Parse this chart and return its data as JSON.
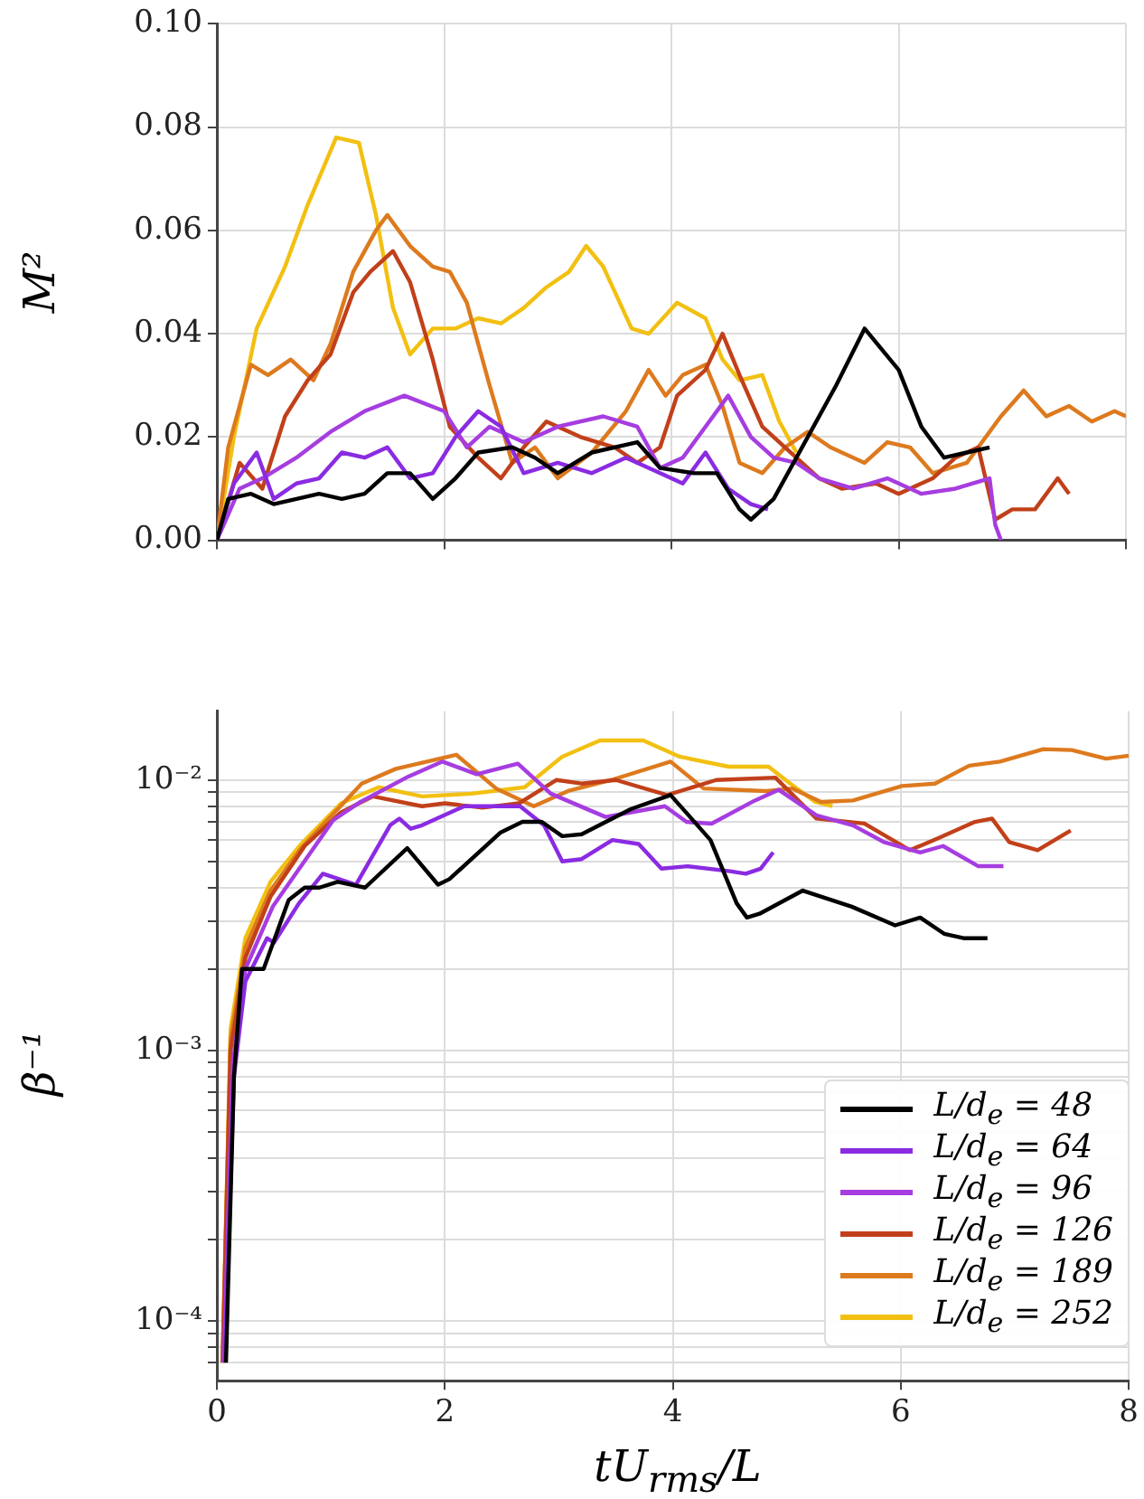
{
  "chart_data": [
    {
      "type": "line",
      "ylabel": "M²",
      "xlim": [
        0,
        8
      ],
      "xticks": [
        0,
        2,
        4,
        6,
        8
      ],
      "ylim": [
        0,
        0.1
      ],
      "yticks": [
        {
          "value": 0,
          "label": "0.00"
        },
        {
          "value": 0.02,
          "label": "0.02"
        },
        {
          "value": 0.04,
          "label": "0.04"
        },
        {
          "value": 0.06,
          "label": "0.06"
        },
        {
          "value": 0.08,
          "label": "0.08"
        },
        {
          "value": 0.1,
          "label": "0.10"
        }
      ],
      "grid": true,
      "tick_labels": "y",
      "line_style": "solid",
      "series": [
        {
          "color": "#000000",
          "x": [
            0,
            0.1,
            0.3,
            0.5,
            0.7,
            0.9,
            1.1,
            1.3,
            1.5,
            1.7,
            1.9,
            2.1,
            2.3,
            2.6,
            2.8,
            3.0,
            3.3,
            3.7,
            3.9,
            4.2,
            4.4,
            4.6,
            4.7,
            4.9,
            5.2,
            5.45,
            5.7,
            6.0,
            6.2,
            6.4,
            6.6,
            6.8
          ],
          "values": [
            0,
            0.008,
            0.009,
            0.007,
            0.008,
            0.009,
            0.008,
            0.009,
            0.013,
            0.013,
            0.008,
            0.012,
            0.017,
            0.018,
            0.016,
            0.013,
            0.017,
            0.019,
            0.014,
            0.013,
            0.013,
            0.006,
            0.004,
            0.008,
            0.02,
            0.03,
            0.041,
            0.033,
            0.022,
            0.016,
            0.017,
            0.018
          ]
        },
        {
          "color": "#8a2be2",
          "x": [
            0,
            0.15,
            0.35,
            0.5,
            0.7,
            0.9,
            1.1,
            1.3,
            1.5,
            1.7,
            1.9,
            2.1,
            2.3,
            2.5,
            2.7,
            3.0,
            3.3,
            3.6,
            3.9,
            4.1,
            4.3,
            4.5,
            4.7,
            4.85
          ],
          "values": [
            0,
            0.011,
            0.017,
            0.008,
            0.011,
            0.012,
            0.017,
            0.016,
            0.018,
            0.012,
            0.013,
            0.02,
            0.025,
            0.022,
            0.013,
            0.015,
            0.013,
            0.016,
            0.013,
            0.011,
            0.017,
            0.01,
            0.007,
            0.006
          ]
        },
        {
          "color": "#a63de0",
          "x": [
            0,
            0.2,
            0.4,
            0.7,
            1.0,
            1.3,
            1.65,
            2.0,
            2.2,
            2.4,
            2.7,
            3.0,
            3.4,
            3.7,
            3.9,
            4.1,
            4.3,
            4.5,
            4.7,
            4.9,
            5.1,
            5.3,
            5.6,
            5.9,
            6.2,
            6.5,
            6.8,
            6.85,
            6.9
          ],
          "values": [
            0,
            0.01,
            0.012,
            0.016,
            0.021,
            0.025,
            0.028,
            0.025,
            0.018,
            0.022,
            0.019,
            0.022,
            0.024,
            0.022,
            0.014,
            0.016,
            0.022,
            0.028,
            0.02,
            0.016,
            0.015,
            0.012,
            0.01,
            0.012,
            0.009,
            0.01,
            0.012,
            0.003,
            0
          ]
        },
        {
          "color": "#c1401a",
          "x": [
            0,
            0.2,
            0.4,
            0.6,
            0.8,
            1.0,
            1.2,
            1.35,
            1.55,
            1.7,
            1.9,
            2.05,
            2.3,
            2.5,
            2.7,
            2.9,
            3.2,
            3.5,
            3.7,
            3.9,
            4.05,
            4.3,
            4.45,
            4.6,
            4.8,
            5.0,
            5.3,
            5.5,
            5.8,
            6.0,
            6.3,
            6.5,
            6.7,
            6.85,
            7.0,
            7.2,
            7.4,
            7.5
          ],
          "values": [
            0,
            0.015,
            0.01,
            0.024,
            0.031,
            0.036,
            0.048,
            0.052,
            0.056,
            0.05,
            0.035,
            0.022,
            0.016,
            0.012,
            0.018,
            0.023,
            0.02,
            0.018,
            0.015,
            0.018,
            0.028,
            0.033,
            0.04,
            0.032,
            0.022,
            0.018,
            0.012,
            0.01,
            0.011,
            0.009,
            0.012,
            0.016,
            0.018,
            0.004,
            0.006,
            0.006,
            0.012,
            0.009
          ]
        },
        {
          "color": "#dd7a1e",
          "x": [
            0,
            0.1,
            0.3,
            0.45,
            0.65,
            0.85,
            1.0,
            1.2,
            1.4,
            1.5,
            1.7,
            1.9,
            2.05,
            2.2,
            2.4,
            2.6,
            2.8,
            3.0,
            3.3,
            3.6,
            3.8,
            3.95,
            4.1,
            4.3,
            4.45,
            4.6,
            4.8,
            5.0,
            5.2,
            5.4,
            5.7,
            5.9,
            6.1,
            6.3,
            6.6,
            6.9,
            7.1,
            7.3,
            7.5,
            7.7,
            7.9,
            8.0
          ],
          "values": [
            0,
            0.018,
            0.034,
            0.032,
            0.035,
            0.031,
            0.038,
            0.052,
            0.06,
            0.063,
            0.057,
            0.053,
            0.052,
            0.046,
            0.03,
            0.015,
            0.018,
            0.012,
            0.017,
            0.025,
            0.033,
            0.028,
            0.032,
            0.034,
            0.026,
            0.015,
            0.013,
            0.018,
            0.021,
            0.018,
            0.015,
            0.019,
            0.018,
            0.013,
            0.015,
            0.024,
            0.029,
            0.024,
            0.026,
            0.023,
            0.025,
            0.024
          ]
        },
        {
          "color": "#f2c012",
          "x": [
            0,
            0.15,
            0.35,
            0.6,
            0.8,
            1.05,
            1.25,
            1.4,
            1.55,
            1.7,
            1.9,
            2.1,
            2.3,
            2.5,
            2.7,
            2.9,
            3.1,
            3.25,
            3.4,
            3.65,
            3.8,
            4.05,
            4.3,
            4.45,
            4.6,
            4.8,
            4.95,
            5.1
          ],
          "values": [
            0,
            0.02,
            0.041,
            0.053,
            0.065,
            0.078,
            0.077,
            0.063,
            0.045,
            0.036,
            0.041,
            0.041,
            0.043,
            0.042,
            0.045,
            0.049,
            0.052,
            0.057,
            0.053,
            0.041,
            0.04,
            0.046,
            0.043,
            0.035,
            0.031,
            0.032,
            0.023,
            0.017
          ]
        }
      ]
    },
    {
      "type": "line",
      "xlabel": "tU$_{rms}$/L",
      "ylabel": "β⁻¹",
      "xlim": [
        0,
        8
      ],
      "xticks": [
        0,
        2,
        4,
        6,
        8
      ],
      "ylim": [
        6e-05,
        0.018
      ],
      "log": "y",
      "yticks": [
        {
          "value": 7e-05,
          "label": null
        },
        {
          "value": 8e-05,
          "label": null
        },
        {
          "value": 9e-05,
          "label": null
        },
        {
          "value": 0.0001,
          "label": "10⁻⁴"
        },
        {
          "value": 0.0002,
          "label": null
        },
        {
          "value": 0.0003,
          "label": null
        },
        {
          "value": 0.0004,
          "label": null
        },
        {
          "value": 0.0005,
          "label": null
        },
        {
          "value": 0.0006,
          "label": null
        },
        {
          "value": 0.0007,
          "label": null
        },
        {
          "value": 0.0008,
          "label": null
        },
        {
          "value": 0.0009,
          "label": null
        },
        {
          "value": 0.001,
          "label": "10⁻³"
        },
        {
          "value": 0.002,
          "label": null
        },
        {
          "value": 0.003,
          "label": null
        },
        {
          "value": 0.004,
          "label": null
        },
        {
          "value": 0.005,
          "label": null
        },
        {
          "value": 0.006,
          "label": null
        },
        {
          "value": 0.007,
          "label": null
        },
        {
          "value": 0.008,
          "label": null
        },
        {
          "value": 0.009,
          "label": null
        },
        {
          "value": 0.01,
          "label": "10⁻²"
        }
      ],
      "grid": true,
      "legend": "bottom right",
      "line_style": "solid",
      "series": [
        {
          "name": "L/d$_{e}$ = 48",
          "color": "#000000",
          "x": [
            0.08,
            0.15,
            0.22,
            0.41,
            0.63,
            0.77,
            0.9,
            1.06,
            1.3,
            1.67,
            1.94,
            2.04,
            2.49,
            2.68,
            2.85,
            3.03,
            3.2,
            3.63,
            3.98,
            4.33,
            4.56,
            4.65,
            4.76,
            5.14,
            5.57,
            5.95,
            6.17,
            6.38,
            6.55,
            6.76
          ],
          "values": [
            7e-05,
            0.0008,
            0.002,
            0.002,
            0.0036,
            0.004,
            0.004,
            0.0042,
            0.004,
            0.0056,
            0.0041,
            0.0043,
            0.0064,
            0.007,
            0.007,
            0.0062,
            0.0063,
            0.0078,
            0.0088,
            0.006,
            0.0035,
            0.0031,
            0.0032,
            0.0039,
            0.0034,
            0.0029,
            0.0031,
            0.0027,
            0.0026,
            0.0026
          ]
        },
        {
          "name": "L/d$_{e}$ = 64",
          "color": "#8a2be2",
          "x": [
            0.07,
            0.15,
            0.25,
            0.44,
            0.5,
            0.72,
            0.93,
            1.22,
            1.52,
            1.6,
            1.7,
            1.8,
            2.17,
            2.66,
            2.87,
            3.03,
            3.2,
            3.47,
            3.7,
            3.9,
            4.13,
            4.5,
            4.64,
            4.77,
            4.88
          ],
          "values": [
            7e-05,
            0.0008,
            0.0018,
            0.0026,
            0.0025,
            0.0035,
            0.0045,
            0.0041,
            0.0068,
            0.0072,
            0.0066,
            0.0068,
            0.008,
            0.008,
            0.0068,
            0.005,
            0.0051,
            0.006,
            0.0058,
            0.0047,
            0.0048,
            0.0046,
            0.0045,
            0.0047,
            0.0054
          ]
        },
        {
          "name": "L/d$_{e}$ = 96",
          "color": "#a63de0",
          "x": [
            0.06,
            0.14,
            0.25,
            0.49,
            1.02,
            1.26,
            1.68,
            1.98,
            2.28,
            2.64,
            2.93,
            3.41,
            3.93,
            4.12,
            4.34,
            4.72,
            4.93,
            5.26,
            5.58,
            5.85,
            6.17,
            6.37,
            6.68,
            6.9
          ],
          "values": [
            7e-05,
            0.0009,
            0.002,
            0.0034,
            0.0071,
            0.0083,
            0.0103,
            0.0117,
            0.0105,
            0.0115,
            0.0089,
            0.0073,
            0.008,
            0.007,
            0.0069,
            0.0084,
            0.0092,
            0.0074,
            0.0068,
            0.0059,
            0.0054,
            0.0057,
            0.0048,
            0.0048
          ]
        },
        {
          "name": "L/d$_{e}$ = 126",
          "color": "#c1401a",
          "x": [
            0.05,
            0.12,
            0.25,
            0.47,
            0.77,
            1.09,
            1.37,
            1.8,
            2.0,
            2.33,
            2.65,
            2.98,
            3.2,
            3.5,
            3.95,
            4.38,
            4.9,
            5.26,
            5.68,
            6.08,
            6.33,
            6.65,
            6.8,
            6.95,
            7.2,
            7.49
          ],
          "values": [
            7e-05,
            0.001,
            0.0022,
            0.0037,
            0.0057,
            0.0076,
            0.0087,
            0.008,
            0.0082,
            0.0079,
            0.0082,
            0.01,
            0.0097,
            0.01,
            0.0088,
            0.01,
            0.0102,
            0.0072,
            0.0069,
            0.0055,
            0.0061,
            0.007,
            0.0072,
            0.0059,
            0.0055,
            0.0065
          ]
        },
        {
          "name": "L/d$_{e}$ = 189",
          "color": "#dd7a1e",
          "x": [
            0.05,
            0.12,
            0.25,
            0.47,
            0.74,
            1.27,
            1.57,
            2.1,
            2.45,
            2.78,
            3.08,
            3.46,
            3.98,
            4.27,
            4.82,
            5.05,
            5.3,
            5.58,
            6.01,
            6.3,
            6.6,
            6.87,
            7.25,
            7.5,
            7.8,
            8.0
          ],
          "values": [
            7e-05,
            0.0011,
            0.0024,
            0.0039,
            0.0056,
            0.0097,
            0.011,
            0.0124,
            0.0093,
            0.008,
            0.0091,
            0.01,
            0.0117,
            0.0093,
            0.0091,
            0.0093,
            0.0083,
            0.0084,
            0.0095,
            0.0097,
            0.0113,
            0.0117,
            0.013,
            0.0129,
            0.012,
            0.0123
          ]
        },
        {
          "name": "L/d$_{e}$ = 252",
          "color": "#f2c012",
          "x": [
            0.05,
            0.12,
            0.25,
            0.47,
            0.74,
            1.09,
            1.42,
            1.8,
            2.23,
            2.7,
            3.03,
            3.36,
            3.74,
            4.06,
            4.49,
            4.84,
            5.03,
            5.25,
            5.4
          ],
          "values": [
            7e-05,
            0.0012,
            0.0026,
            0.0042,
            0.0058,
            0.0082,
            0.0094,
            0.0087,
            0.0089,
            0.0094,
            0.0122,
            0.014,
            0.014,
            0.0122,
            0.0112,
            0.0112,
            0.0097,
            0.0083,
            0.008
          ]
        }
      ]
    }
  ]
}
